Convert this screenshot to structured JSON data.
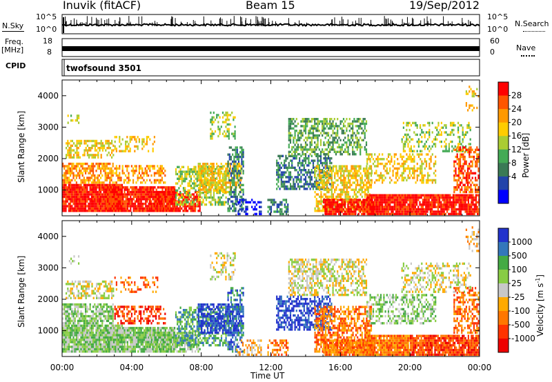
{
  "header": {
    "station": "Inuvik (fitACF)",
    "beam": "Beam 15",
    "date": "19/Sep/2012"
  },
  "top_panels": {
    "nsky_label": "N.Sky",
    "nsky_ticks": [
      "10^5",
      "10^0"
    ],
    "nsearch_label": "N.Search",
    "nsearch_ticks": [
      "10^5",
      "10^0"
    ],
    "freq_label": "Freq.",
    "freq_unit": "[MHz]",
    "freq_ticks": [
      "18",
      "8"
    ],
    "nave_label": "Nave",
    "nave_ticks": [
      "60",
      "0"
    ],
    "cpid_label": "CPID",
    "cpid_value": "twofsound 3501"
  },
  "power_colorbar": {
    "label": "Power [dB]",
    "ticks": [
      "28",
      "24",
      "20",
      "16",
      "12",
      "8",
      "4"
    ],
    "colors": [
      "#ff0000",
      "#ff5500",
      "#ff9900",
      "#ffcc00",
      "#aacc33",
      "#44aa55",
      "#3a7a55",
      "#2244aa",
      "#0000ff"
    ]
  },
  "velocity_colorbar": {
    "label": "Velocity [m s",
    "label_sup": "-1",
    "label_end": "]",
    "ticks": [
      "1000",
      "500",
      "100",
      "25",
      "-25",
      "-100",
      "-500",
      "-1000"
    ],
    "colors": [
      "#2233cc",
      "#3377bb",
      "#44aa44",
      "#88cc44",
      "#c8c8c8",
      "#ffaa00",
      "#ff7700",
      "#ff3300",
      "#ee0000"
    ]
  },
  "chart_data": [
    {
      "type": "line",
      "title": "N.Sky / N.Search",
      "xlabel": "Time UT",
      "x_ticks": [
        "00:00",
        "04:00",
        "08:00",
        "12:00",
        "16:00",
        "20:00",
        "00:00"
      ],
      "y_scale": "log",
      "ylim": [
        1,
        100000
      ]
    },
    {
      "type": "line",
      "title": "Freq. / Nave",
      "ylabel": "Freq. [MHz]",
      "ylim": [
        8,
        18
      ],
      "y2label": "Nave",
      "y2lim": [
        0,
        60
      ],
      "series": [
        {
          "name": "Freq.",
          "values": [
            10.5,
            10.5,
            10.5,
            10.5,
            10.5,
            10.5,
            10.5
          ]
        }
      ]
    },
    {
      "type": "heatmap",
      "title": "Power",
      "xlabel": "Time UT",
      "ylabel": "Slant Range [km]",
      "x_ticks": [
        "00:00",
        "04:00",
        "08:00",
        "12:00",
        "16:00",
        "20:00",
        "00:00"
      ],
      "y_ticks": [
        1000,
        2000,
        3000,
        4000
      ],
      "ylim": [
        180,
        4500
      ],
      "xlim_hours": [
        0,
        24
      ],
      "colorbar": "Power [dB]",
      "clim": [
        0,
        30
      ]
    },
    {
      "type": "heatmap",
      "title": "Velocity",
      "xlabel": "Time UT",
      "ylabel": "Slant Range [km]",
      "x_ticks": [
        "00:00",
        "04:00",
        "08:00",
        "12:00",
        "16:00",
        "20:00",
        "00:00"
      ],
      "y_ticks": [
        1000,
        2000,
        3000,
        4000
      ],
      "ylim": [
        180,
        4500
      ],
      "xlim_hours": [
        0,
        24
      ],
      "colorbar": "Velocity [m s-1]",
      "clim": [
        -1000,
        1000
      ]
    }
  ],
  "x_axis_label": "Time UT"
}
